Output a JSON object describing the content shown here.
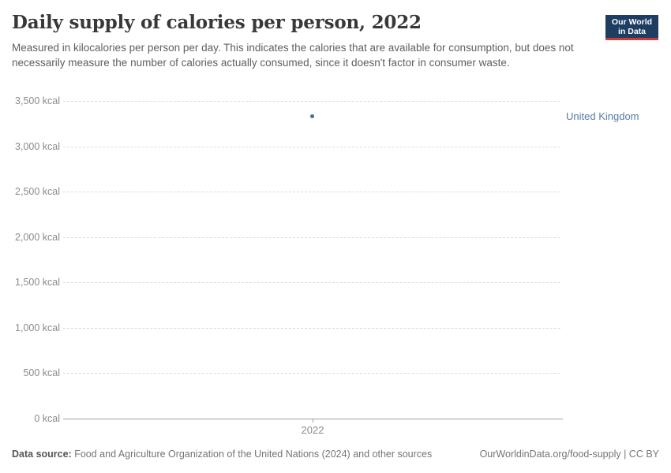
{
  "header": {
    "title": "Daily supply of calories per person, 2022",
    "subtitle": "Measured in kilocalories per person per day. This indicates the calories that are available for consumption, but does not necessarily measure the number of calories actually consumed, since it doesn't factor in consumer waste.",
    "logo": {
      "line1": "Our World",
      "line2": "in Data",
      "bg_color": "#1d3d63",
      "accent_color": "#d13b33"
    }
  },
  "chart_data": {
    "type": "scatter",
    "title": "Daily supply of calories per person, 2022",
    "x": [
      2022
    ],
    "series": [
      {
        "name": "United Kingdom",
        "values": [
          3330
        ],
        "point_color": "#4c6a9e",
        "label_color": "#5878af"
      }
    ],
    "xlabel": "",
    "ylabel": "",
    "ylim": [
      0,
      3500
    ],
    "yticks": [
      0,
      500,
      1000,
      1500,
      2000,
      2500,
      3000,
      3500
    ],
    "ytick_labels": [
      "0 kcal",
      "500 kcal",
      "1,000 kcal",
      "1,500 kcal",
      "2,000 kcal",
      "2,500 kcal",
      "3,000 kcal",
      "3,500 kcal"
    ],
    "xtick_labels": [
      "2022"
    ],
    "grid": "horizontal dashed gridlines, solid zero baseline",
    "legend_position": "entity label right of plot area"
  },
  "footer": {
    "datasource_label": "Data source:",
    "datasource_text": " Food and Agriculture Organization of the United Nations (2024) and other sources",
    "credit": "OurWorldinData.org/food-supply | CC BY"
  }
}
